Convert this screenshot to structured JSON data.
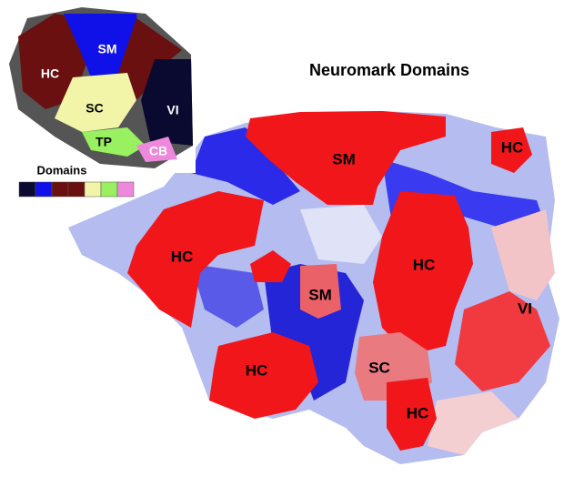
{
  "title": "Neuromark Domains",
  "inset": {
    "labels": [
      "SM",
      "HC",
      "SC",
      "VI",
      "TP",
      "CB"
    ],
    "legend_title": "Domains"
  },
  "map": {
    "labels": [
      "SM",
      "HC",
      "HC",
      "HC",
      "SM",
      "HC",
      "HC",
      "SC",
      "VI"
    ]
  }
}
